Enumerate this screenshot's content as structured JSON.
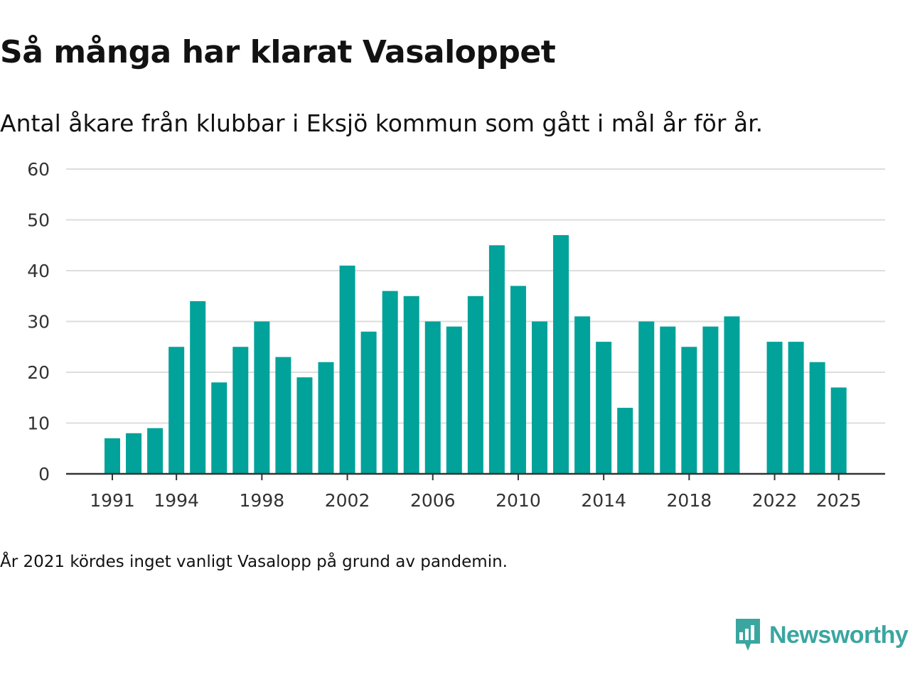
{
  "colors": {
    "bar": "#00a29a",
    "grid": "#dddddd",
    "axis": "#333333",
    "brand": "#3aa6a0"
  },
  "chart_data": {
    "type": "bar",
    "title": "Så många har klarat Vasaloppet",
    "subtitle": "Antal åkare från klubbar i Eksjö kommun som gått i mål år för år.",
    "xlabel": "",
    "ylabel": "",
    "ylim": [
      0,
      60
    ],
    "yticks": [
      0,
      10,
      20,
      30,
      40,
      50,
      60
    ],
    "xticks": [
      "1991",
      "1994",
      "1998",
      "2002",
      "2006",
      "2010",
      "2014",
      "2018",
      "2022",
      "2025"
    ],
    "grid": true,
    "categories": [
      1991,
      1992,
      1993,
      1994,
      1995,
      1996,
      1997,
      1998,
      1999,
      2000,
      2001,
      2002,
      2003,
      2004,
      2005,
      2006,
      2007,
      2008,
      2009,
      2010,
      2011,
      2012,
      2013,
      2014,
      2015,
      2016,
      2017,
      2018,
      2019,
      2020,
      2021,
      2022,
      2023,
      2024,
      2025
    ],
    "values": [
      7,
      8,
      9,
      25,
      34,
      18,
      25,
      30,
      23,
      19,
      22,
      41,
      28,
      36,
      35,
      30,
      29,
      35,
      45,
      37,
      30,
      47,
      31,
      26,
      13,
      30,
      29,
      25,
      29,
      31,
      null,
      26,
      26,
      22,
      17
    ]
  },
  "footnote": "År 2021 kördes inget vanligt Vasalopp på grund av pandemin.",
  "logo": {
    "text": "Newsworthy",
    "icon": "newsworthy-logo-icon"
  }
}
